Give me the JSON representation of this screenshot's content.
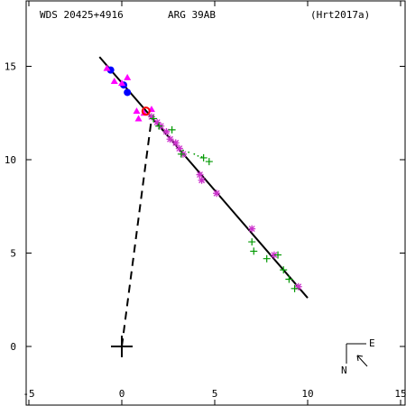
{
  "header": {
    "wds": "WDS 20425+4916",
    "disc": "ARG  39AB",
    "ref": "(Hrt2017a)"
  },
  "compass": {
    "north": "N",
    "east": "E"
  },
  "chart_data": {
    "type": "scatter",
    "title": "",
    "xlabel": "",
    "ylabel": "",
    "xlim": [
      -5,
      15
    ],
    "ylim": [
      -3,
      18
    ],
    "x_ticks": [
      -5,
      0,
      5,
      10,
      15
    ],
    "x_tick_labels": [
      "-5",
      "0",
      "5",
      "10",
      "15"
    ],
    "y_ticks": [
      0,
      5,
      10,
      15
    ],
    "y_tick_labels": [
      "0",
      "5",
      "10",
      "15"
    ],
    "grid": false,
    "primary": {
      "x": 0,
      "y": 0
    },
    "orbit_line": {
      "from": [
        -1.2,
        15.5
      ],
      "to": [
        10.0,
        2.6
      ]
    },
    "connector": {
      "from": [
        0,
        0
      ],
      "to": [
        1.6,
        12.2
      ]
    },
    "colors": {
      "axes": "#000000",
      "circles": "#0000ff",
      "triangles": "#ff00ff",
      "stars": "#cc33cc",
      "plus": "#009900",
      "red": "#ff0000",
      "dots": "#009900"
    },
    "series": [
      {
        "marker": "circle",
        "points": [
          [
            -0.6,
            14.8
          ],
          [
            0.1,
            14.0
          ],
          [
            0.3,
            13.6
          ]
        ]
      },
      {
        "marker": "triangle",
        "points": [
          [
            -0.8,
            14.9
          ],
          [
            -0.4,
            14.2
          ],
          [
            0,
            14.1
          ],
          [
            0.3,
            14.4
          ],
          [
            0.8,
            12.6
          ],
          [
            1.2,
            12.5
          ],
          [
            1.6,
            12.7
          ],
          [
            0.9,
            12.2
          ]
        ]
      },
      {
        "marker": "red-circle",
        "points": [
          [
            1.3,
            12.6
          ]
        ]
      },
      {
        "marker": "star",
        "points": [
          [
            1.6,
            12.3
          ],
          [
            1.9,
            12.0
          ],
          [
            2.1,
            11.8
          ],
          [
            2.4,
            11.5
          ],
          [
            2.6,
            11.1
          ],
          [
            2.9,
            10.9
          ],
          [
            3.1,
            10.6
          ],
          [
            3.3,
            10.3
          ],
          [
            4.2,
            9.2
          ],
          [
            4.3,
            8.9
          ],
          [
            5.1,
            8.2
          ],
          [
            7.0,
            6.3
          ],
          [
            8.2,
            4.9
          ],
          [
            9.5,
            3.2
          ]
        ]
      },
      {
        "marker": "plus",
        "points": [
          [
            1.7,
            12.2
          ],
          [
            2.0,
            11.8
          ],
          [
            2.7,
            11.6
          ],
          [
            3.2,
            10.3
          ],
          [
            4.4,
            10.1
          ],
          [
            4.7,
            9.9
          ],
          [
            7.0,
            5.6
          ],
          [
            7.1,
            5.1
          ],
          [
            7.8,
            4.7
          ],
          [
            8.4,
            4.9
          ],
          [
            8.7,
            4.1
          ],
          [
            9.0,
            3.6
          ],
          [
            9.3,
            3.1
          ]
        ]
      },
      {
        "marker": "dot",
        "points": [
          [
            3.3,
            10.5
          ],
          [
            3.6,
            10.4
          ],
          [
            3.9,
            10.3
          ],
          [
            4.1,
            10.2
          ],
          [
            4.3,
            10.15
          ]
        ]
      }
    ]
  }
}
